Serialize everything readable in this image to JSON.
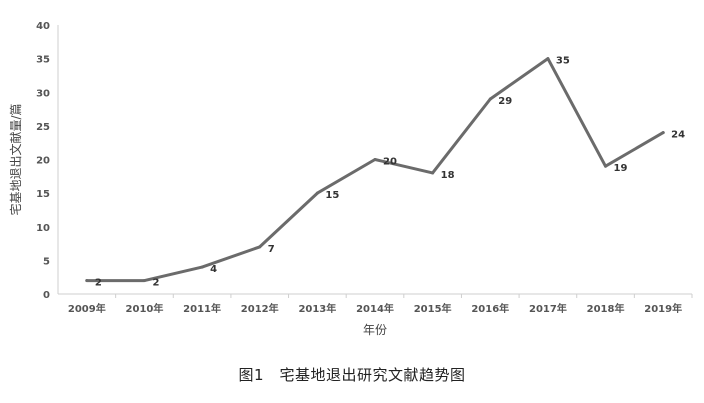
{
  "chart_data": {
    "type": "line",
    "categories": [
      "2009年",
      "2010年",
      "2011年",
      "2012年",
      "2013年",
      "2014年",
      "2015年",
      "2016年",
      "2017年",
      "2018年",
      "2019年"
    ],
    "series": [
      {
        "values": [
          2,
          2,
          4,
          7,
          15,
          20,
          18,
          29,
          35,
          19,
          24
        ]
      }
    ],
    "title": "图1　宅基地退出研究文献趋势图",
    "xlabel": "年份",
    "ylabel": "宅基地退出文献量/篇",
    "ylim": [
      0,
      40
    ],
    "yticks": [
      0,
      5,
      10,
      15,
      20,
      25,
      30,
      35,
      40
    ],
    "line_color": "#6b6b6b",
    "grid": false,
    "data_labels": true
  }
}
